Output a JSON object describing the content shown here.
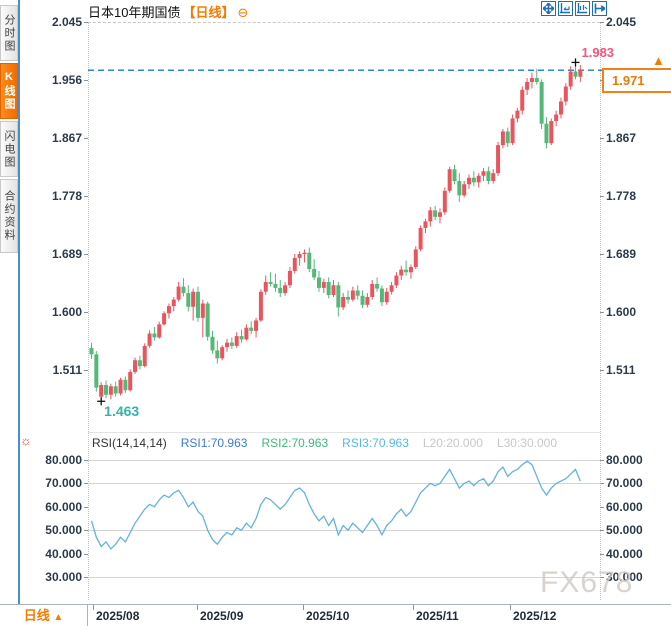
{
  "titlebar": {
    "title": "日本10年期国债",
    "period_tag": "【日线】",
    "collapse_glyph": "⊖",
    "toolbar_icons": [
      "crosshair",
      "compress-chart",
      "expand-chart",
      "jump-to-latest"
    ]
  },
  "sidebar": {
    "items": [
      {
        "label": "分时图",
        "active": false
      },
      {
        "label": "K线图",
        "active": true
      },
      {
        "label": "闪电图",
        "active": false
      },
      {
        "label": "合约资料",
        "active": false
      }
    ]
  },
  "price_panel": {
    "y_ticks": [
      "2.045",
      "1.956",
      "1.867",
      "1.778",
      "1.689",
      "1.600",
      "1.511"
    ],
    "high_label": "1.983",
    "low_label": "1.463",
    "last_price": "1.971",
    "marker_glyph": "▲"
  },
  "rsi_panel": {
    "settings_glyph": "☼",
    "header": {
      "name": "RSI(14,14,14)",
      "rsi1": "RSI1:70.963",
      "rsi2": "RSI2:70.963",
      "rsi3": "RSI3:70.963",
      "l20": "L20:20.000",
      "l30": "L30:30.000"
    },
    "y_ticks": [
      "80.000",
      "70.000",
      "60.000",
      "50.000",
      "40.000",
      "30.000"
    ]
  },
  "bottom_bar": {
    "period_label": "日线",
    "period_arrow": "▲",
    "x_labels": [
      "2025/08",
      "2025/09",
      "2025/10",
      "2025/11",
      "2025/12"
    ]
  },
  "watermark": "FX678",
  "colors": {
    "up_candle": "#e8555e",
    "down_candle": "#54b878",
    "accent_orange": "#f57c00",
    "price_line_blue": "#2b84d6",
    "high_label_pink": "#f2557d",
    "low_label_teal": "#35b3a5",
    "rsi_line": "#63b4dc",
    "toolbar_blue": "#1e6fb8",
    "marker_cross": "#111111"
  },
  "chart_data": [
    {
      "type": "candlestick",
      "title": "日本10年期国债 日线 (red = up, green = down)",
      "ylim": [
        1.42,
        2.045
      ],
      "y_tick_values": [
        2.045,
        1.956,
        1.867,
        1.778,
        1.689,
        1.6,
        1.511
      ],
      "x_axis_months": [
        "2025/08",
        "2025/09",
        "2025/10",
        "2025/11",
        "2025/12"
      ],
      "annotations": {
        "session_high": 1.983,
        "session_low": 1.463,
        "last_close": 1.971
      },
      "candles_ohlc": [
        [
          1.545,
          1.553,
          1.528,
          1.535
        ],
        [
          1.535,
          1.54,
          1.478,
          1.484
        ],
        [
          1.47,
          1.492,
          1.463,
          1.488
        ],
        [
          1.488,
          1.495,
          1.468,
          1.473
        ],
        [
          1.473,
          1.49,
          1.466,
          1.486
        ],
        [
          1.486,
          1.493,
          1.47,
          1.475
        ],
        [
          1.475,
          1.499,
          1.472,
          1.496
        ],
        [
          1.496,
          1.501,
          1.476,
          1.48
        ],
        [
          1.48,
          1.512,
          1.478,
          1.508
        ],
        [
          1.508,
          1.53,
          1.505,
          1.526
        ],
        [
          1.526,
          1.533,
          1.512,
          1.517
        ],
        [
          1.517,
          1.552,
          1.515,
          1.548
        ],
        [
          1.548,
          1.572,
          1.545,
          1.567
        ],
        [
          1.567,
          1.577,
          1.556,
          1.561
        ],
        [
          1.561,
          1.585,
          1.559,
          1.581
        ],
        [
          1.581,
          1.601,
          1.579,
          1.598
        ],
        [
          1.598,
          1.613,
          1.59,
          1.609
        ],
        [
          1.609,
          1.623,
          1.601,
          1.619
        ],
        [
          1.619,
          1.646,
          1.616,
          1.639
        ],
        [
          1.639,
          1.652,
          1.624,
          1.629
        ],
        [
          1.629,
          1.641,
          1.601,
          1.608
        ],
        [
          1.608,
          1.636,
          1.587,
          1.631
        ],
        [
          1.631,
          1.639,
          1.585,
          1.591
        ],
        [
          1.591,
          1.619,
          1.561,
          1.613
        ],
        [
          1.613,
          1.616,
          1.556,
          1.562
        ],
        [
          1.562,
          1.571,
          1.536,
          1.541
        ],
        [
          1.541,
          1.556,
          1.521,
          1.529
        ],
        [
          1.529,
          1.549,
          1.526,
          1.546
        ],
        [
          1.546,
          1.559,
          1.539,
          1.553
        ],
        [
          1.553,
          1.561,
          1.543,
          1.548
        ],
        [
          1.548,
          1.569,
          1.545,
          1.563
        ],
        [
          1.563,
          1.573,
          1.553,
          1.558
        ],
        [
          1.558,
          1.581,
          1.556,
          1.576
        ],
        [
          1.576,
          1.586,
          1.566,
          1.571
        ],
        [
          1.571,
          1.591,
          1.561,
          1.587
        ],
        [
          1.587,
          1.635,
          1.585,
          1.631
        ],
        [
          1.631,
          1.656,
          1.626,
          1.646
        ],
        [
          1.646,
          1.661,
          1.639,
          1.643
        ],
        [
          1.643,
          1.659,
          1.631,
          1.637
        ],
        [
          1.637,
          1.649,
          1.623,
          1.629
        ],
        [
          1.629,
          1.646,
          1.625,
          1.641
        ],
        [
          1.641,
          1.669,
          1.637,
          1.663
        ],
        [
          1.663,
          1.689,
          1.659,
          1.683
        ],
        [
          1.683,
          1.693,
          1.671,
          1.689
        ],
        [
          1.689,
          1.696,
          1.676,
          1.691
        ],
        [
          1.691,
          1.699,
          1.661,
          1.666
        ],
        [
          1.666,
          1.681,
          1.649,
          1.653
        ],
        [
          1.653,
          1.663,
          1.631,
          1.637
        ],
        [
          1.637,
          1.651,
          1.629,
          1.646
        ],
        [
          1.646,
          1.653,
          1.621,
          1.626
        ],
        [
          1.626,
          1.649,
          1.623,
          1.641
        ],
        [
          1.641,
          1.646,
          1.593,
          1.607
        ],
        [
          1.607,
          1.629,
          1.603,
          1.623
        ],
        [
          1.623,
          1.633,
          1.613,
          1.619
        ],
        [
          1.619,
          1.639,
          1.616,
          1.633
        ],
        [
          1.633,
          1.641,
          1.619,
          1.625
        ],
        [
          1.625,
          1.633,
          1.606,
          1.611
        ],
        [
          1.611,
          1.629,
          1.607,
          1.623
        ],
        [
          1.623,
          1.649,
          1.619,
          1.643
        ],
        [
          1.643,
          1.653,
          1.631,
          1.636
        ],
        [
          1.636,
          1.641,
          1.609,
          1.615
        ],
        [
          1.615,
          1.637,
          1.611,
          1.631
        ],
        [
          1.631,
          1.646,
          1.627,
          1.641
        ],
        [
          1.641,
          1.661,
          1.637,
          1.656
        ],
        [
          1.656,
          1.671,
          1.649,
          1.665
        ],
        [
          1.665,
          1.679,
          1.656,
          1.661
        ],
        [
          1.661,
          1.673,
          1.651,
          1.669
        ],
        [
          1.669,
          1.701,
          1.666,
          1.696
        ],
        [
          1.696,
          1.733,
          1.693,
          1.729
        ],
        [
          1.729,
          1.743,
          1.721,
          1.739
        ],
        [
          1.739,
          1.761,
          1.731,
          1.756
        ],
        [
          1.756,
          1.763,
          1.741,
          1.746
        ],
        [
          1.746,
          1.759,
          1.736,
          1.753
        ],
        [
          1.753,
          1.791,
          1.749,
          1.786
        ],
        [
          1.786,
          1.823,
          1.783,
          1.819
        ],
        [
          1.819,
          1.826,
          1.796,
          1.801
        ],
        [
          1.801,
          1.813,
          1.769,
          1.779
        ],
        [
          1.779,
          1.801,
          1.776,
          1.796
        ],
        [
          1.796,
          1.811,
          1.789,
          1.806
        ],
        [
          1.806,
          1.816,
          1.793,
          1.799
        ],
        [
          1.799,
          1.813,
          1.791,
          1.809
        ],
        [
          1.809,
          1.821,
          1.801,
          1.816
        ],
        [
          1.816,
          1.823,
          1.796,
          1.801
        ],
        [
          1.801,
          1.819,
          1.797,
          1.813
        ],
        [
          1.813,
          1.861,
          1.809,
          1.856
        ],
        [
          1.856,
          1.881,
          1.851,
          1.877
        ],
        [
          1.877,
          1.883,
          1.853,
          1.859
        ],
        [
          1.859,
          1.903,
          1.856,
          1.897
        ],
        [
          1.897,
          1.913,
          1.891,
          1.909
        ],
        [
          1.909,
          1.946,
          1.903,
          1.941
        ],
        [
          1.941,
          1.959,
          1.933,
          1.953
        ],
        [
          1.953,
          1.967,
          1.943,
          1.959
        ],
        [
          1.959,
          1.973,
          1.949,
          1.953
        ],
        [
          1.953,
          1.957,
          1.881,
          1.889
        ],
        [
          1.889,
          1.899,
          1.851,
          1.859
        ],
        [
          1.859,
          1.897,
          1.856,
          1.893
        ],
        [
          1.893,
          1.909,
          1.885,
          1.903
        ],
        [
          1.903,
          1.929,
          1.897,
          1.923
        ],
        [
          1.923,
          1.951,
          1.917,
          1.946
        ],
        [
          1.946,
          1.977,
          1.941,
          1.969
        ],
        [
          1.969,
          1.983,
          1.957,
          1.961
        ],
        [
          1.961,
          1.979,
          1.953,
          1.971
        ]
      ]
    },
    {
      "type": "line",
      "name": "RSI(14,14,14)",
      "current_values": {
        "rsi1": 70.963,
        "rsi2": 70.963,
        "rsi3": 70.963,
        "l20": 20.0,
        "l30": 30.0
      },
      "ylim": [
        25,
        85
      ],
      "grid_levels": [
        80,
        70,
        50,
        30
      ],
      "y_tick_values": [
        80,
        70,
        60,
        50,
        40,
        30
      ],
      "values": [
        54,
        47,
        43,
        45,
        42,
        44,
        47,
        45,
        49,
        53,
        56,
        59,
        61,
        60,
        63,
        65,
        64,
        66,
        67,
        64,
        60,
        62,
        58,
        56,
        50,
        46,
        44,
        47,
        49,
        48,
        51,
        50,
        53,
        51,
        55,
        61,
        64,
        63,
        61,
        59,
        61,
        64,
        67,
        68,
        66,
        61,
        57,
        54,
        56,
        52,
        55,
        48,
        52,
        50,
        53,
        51,
        49,
        52,
        55,
        52,
        48,
        52,
        54,
        57,
        59,
        56,
        58,
        62,
        66,
        68,
        70,
        69,
        70,
        73,
        76,
        72,
        68,
        70,
        71,
        69,
        71,
        72,
        69,
        71,
        75,
        77,
        73,
        75,
        76,
        78,
        79.5,
        78,
        73,
        68,
        65,
        68,
        70,
        71,
        72,
        74,
        76,
        70.963
      ]
    }
  ]
}
